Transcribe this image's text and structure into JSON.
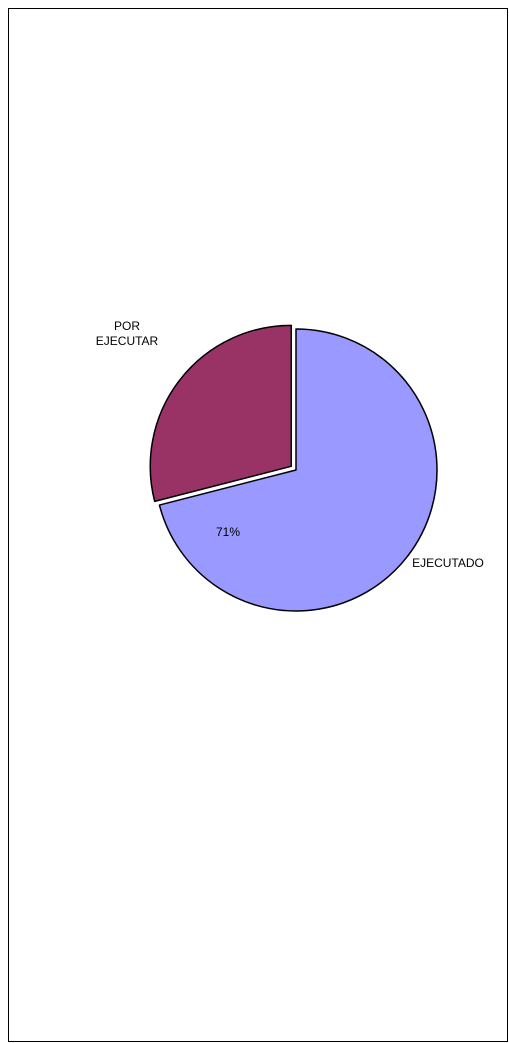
{
  "chart_data": {
    "type": "pie",
    "title": "",
    "slices": [
      {
        "label": "EJECUTADO",
        "value": 71,
        "color": "#9999ff",
        "percent_label": "71%",
        "exploded": false
      },
      {
        "label": "POR EJECUTAR",
        "value": 29,
        "color": "#993366",
        "exploded": true
      }
    ],
    "start_angle_deg": 0,
    "legend": "none"
  }
}
